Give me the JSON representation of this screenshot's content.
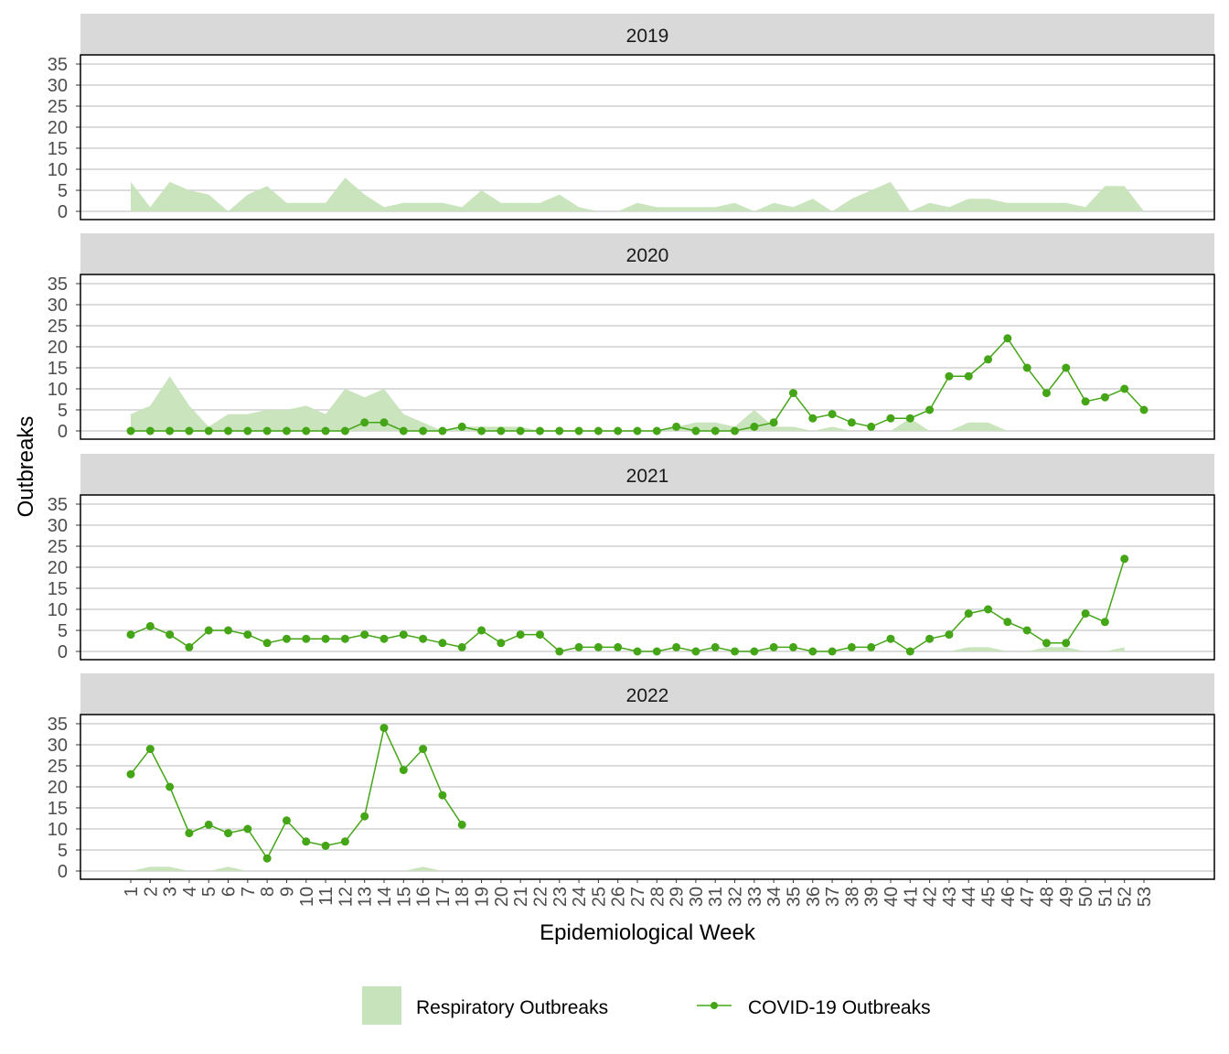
{
  "chart_data": {
    "type": "area+line",
    "facets": [
      "2019",
      "2020",
      "2021",
      "2022"
    ],
    "xlabel": "Epidemiological Week",
    "ylabel": "Outbreaks",
    "ylim": [
      0,
      35
    ],
    "yticks": [
      0,
      5,
      10,
      15,
      20,
      25,
      30,
      35
    ],
    "xticks": [
      "1",
      "2",
      "3",
      "4",
      "5",
      "6",
      "7",
      "8",
      "9",
      "10",
      "11",
      "12",
      "13",
      "14",
      "15",
      "16",
      "17",
      "18",
      "19",
      "20",
      "21",
      "22",
      "23",
      "24",
      "25",
      "26",
      "27",
      "28",
      "29",
      "30",
      "31",
      "32",
      "33",
      "34",
      "35",
      "36",
      "37",
      "38",
      "39",
      "40",
      "41",
      "42",
      "43",
      "44",
      "45",
      "46",
      "47",
      "48",
      "49",
      "50",
      "51",
      "52",
      "53"
    ],
    "grid": true,
    "legend_position": "bottom",
    "colors": {
      "respiratory": "#c7e3bb",
      "covid": "#44a516",
      "strip": "#d9d9d9"
    },
    "series": [
      {
        "name": "Respiratory Outbreaks",
        "type": "area",
        "by_year": {
          "2019": [
            7,
            1,
            7,
            5,
            4,
            0,
            4,
            6,
            2,
            2,
            2,
            8,
            4,
            1,
            2,
            2,
            2,
            1,
            5,
            2,
            2,
            2,
            4,
            1,
            0,
            0,
            2,
            1,
            1,
            1,
            1,
            2,
            0,
            2,
            1,
            3,
            0,
            3,
            5,
            7,
            0,
            2,
            1,
            3,
            3,
            2,
            2,
            2,
            2,
            1,
            6,
            6,
            0
          ],
          "2020": [
            4,
            6,
            13,
            6,
            1,
            4,
            4,
            5,
            5,
            6,
            4,
            10,
            8,
            10,
            4,
            2,
            0,
            1,
            1,
            1,
            1,
            0,
            0,
            0,
            0,
            0,
            0,
            0,
            1,
            2,
            2,
            1,
            5,
            1,
            1,
            0,
            1,
            0,
            0,
            0,
            3,
            0,
            0,
            2,
            2,
            0,
            0,
            0,
            0,
            0,
            0,
            0,
            0
          ],
          "2021": [
            0,
            0,
            0,
            0,
            0,
            0,
            0,
            0,
            0,
            0,
            0,
            0,
            0,
            0,
            0,
            0,
            0,
            0,
            0,
            0,
            0,
            0,
            0,
            0,
            0,
            0,
            0,
            0,
            0,
            0,
            0,
            0,
            0,
            0,
            0,
            0,
            0,
            0,
            0,
            0,
            0,
            0,
            0,
            1,
            1,
            0,
            0,
            1,
            1,
            0,
            0,
            1
          ],
          "2022": [
            0,
            1,
            1,
            0,
            0,
            1,
            0,
            0,
            0,
            0,
            0,
            0,
            0,
            0,
            0,
            1,
            0,
            0
          ]
        }
      },
      {
        "name": "COVID-19 Outbreaks",
        "type": "line",
        "by_year": {
          "2019": [],
          "2020": [
            0,
            0,
            0,
            0,
            0,
            0,
            0,
            0,
            0,
            0,
            0,
            0,
            2,
            2,
            0,
            0,
            0,
            1,
            0,
            0,
            0,
            0,
            0,
            0,
            0,
            0,
            0,
            0,
            1,
            0,
            0,
            0,
            1,
            2,
            9,
            3,
            4,
            2,
            1,
            3,
            3,
            5,
            13,
            13,
            17,
            22,
            15,
            9,
            15,
            7,
            8,
            10,
            5
          ],
          "2021": [
            4,
            6,
            4,
            1,
            5,
            5,
            4,
            2,
            3,
            3,
            3,
            3,
            4,
            3,
            4,
            3,
            2,
            1,
            5,
            2,
            4,
            4,
            0,
            1,
            1,
            1,
            0,
            0,
            1,
            0,
            1,
            0,
            0,
            1,
            1,
            0,
            0,
            1,
            1,
            3,
            0,
            3,
            4,
            9,
            10,
            7,
            5,
            2,
            2,
            9,
            7,
            22
          ],
          "2022": [
            23,
            29,
            20,
            9,
            11,
            9,
            10,
            3,
            12,
            7,
            6,
            7,
            13,
            34,
            24,
            29,
            18,
            11
          ]
        }
      }
    ]
  }
}
